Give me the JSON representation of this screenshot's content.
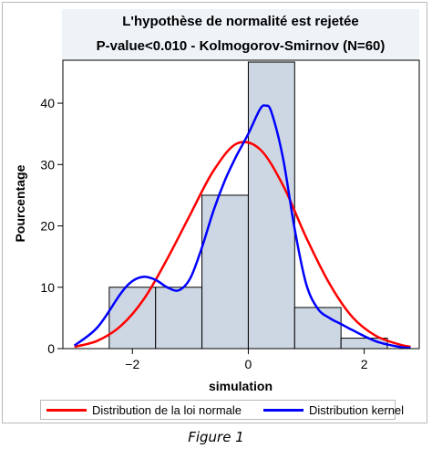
{
  "title": "L'hypothèse de normalité est rejetée",
  "subtitle": "P-value<0.010 - Kolmogorov-Smirnov (N=60)",
  "caption": "Figure 1",
  "colors": {
    "normal": "#ff0000",
    "kernel": "#0000ff",
    "bar_fill": "#cdd7e3",
    "bar_stroke": "#000000",
    "title_bg": "#eef3f8"
  },
  "chart_data": {
    "type": "bar",
    "xlabel": "simulation",
    "ylabel": "Pourcentage",
    "xlim": [
      -3.2,
      2.95
    ],
    "ylim": [
      0,
      47
    ],
    "x_ticks": [
      -2,
      0,
      2
    ],
    "y_ticks": [
      0,
      10,
      20,
      30,
      40
    ],
    "bins": [
      {
        "x0": -2.4,
        "x1": -1.6,
        "value": 10
      },
      {
        "x0": -1.6,
        "x1": -0.8,
        "value": 10
      },
      {
        "x0": -0.8,
        "x1": 0.0,
        "value": 25
      },
      {
        "x0": 0.0,
        "x1": 0.8,
        "value": 46.7
      },
      {
        "x0": 0.8,
        "x1": 1.6,
        "value": 6.7
      },
      {
        "x0": 1.6,
        "x1": 2.4,
        "value": 1.7
      }
    ],
    "series": [
      {
        "name": "Distribution de la loi normale",
        "type": "line",
        "x": [
          -3.0,
          -2.6,
          -2.2,
          -1.8,
          -1.4,
          -1.0,
          -0.6,
          -0.2,
          0.2,
          0.6,
          1.0,
          1.4,
          1.8,
          2.2,
          2.6,
          2.8
        ],
        "values": [
          0.3,
          1.3,
          3.7,
          8.1,
          14.6,
          21.9,
          29.0,
          33.4,
          32.5,
          26.6,
          18.1,
          10.6,
          5.1,
          2.1,
          0.7,
          0.3
        ]
      },
      {
        "name": "Distribution kernel",
        "type": "line",
        "x": [
          -3.0,
          -2.6,
          -2.2,
          -2.0,
          -1.8,
          -1.6,
          -1.4,
          -1.2,
          -1.0,
          -0.8,
          -0.6,
          -0.4,
          -0.2,
          0.0,
          0.2,
          0.3,
          0.4,
          0.6,
          0.8,
          1.0,
          1.2,
          1.4,
          1.6,
          1.8,
          2.2,
          2.6,
          2.8
        ],
        "values": [
          0.5,
          3.5,
          9.0,
          11.0,
          11.7,
          11.2,
          10.0,
          9.5,
          11.5,
          16.5,
          22.5,
          27.5,
          31.5,
          35.0,
          39.0,
          39.6,
          38.5,
          31.0,
          19.5,
          10.5,
          6.5,
          5.0,
          4.0,
          3.0,
          1.2,
          0.3,
          0.1
        ]
      }
    ],
    "legend_position": "bottom",
    "grid": false
  }
}
